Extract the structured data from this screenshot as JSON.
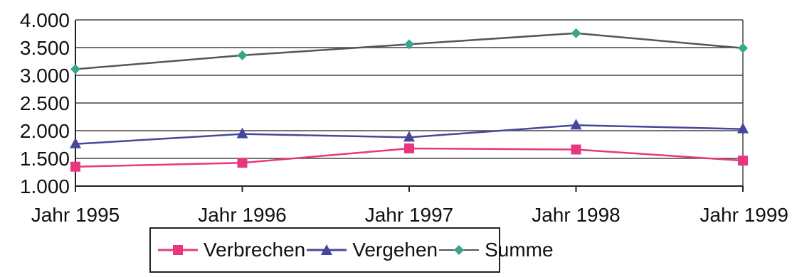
{
  "chart_data": {
    "type": "line",
    "categories": [
      "Jahr 1995",
      "Jahr 1996",
      "Jahr 1997",
      "Jahr 1998",
      "Jahr 1999"
    ],
    "series": [
      {
        "name": "Verbrechen",
        "values": [
          1350,
          1420,
          1680,
          1660,
          1460
        ],
        "color": "#e8377f",
        "marker": "square"
      },
      {
        "name": "Vergehen",
        "values": [
          1760,
          1940,
          1880,
          2100,
          2030
        ],
        "color": "#45489a",
        "marker": "triangle"
      },
      {
        "name": "Summe",
        "values": [
          3110,
          3360,
          3560,
          3760,
          3490
        ],
        "color": "#3aa58c",
        "marker": "diamond"
      }
    ],
    "yticks": [
      "1.000",
      "1.500",
      "2.000",
      "2.500",
      "3.000",
      "3.500",
      "4.000"
    ],
    "ylim": [
      1000,
      4000
    ],
    "grid": true,
    "legend_position": "bottom",
    "title": "",
    "xlabel": "",
    "ylabel": ""
  }
}
